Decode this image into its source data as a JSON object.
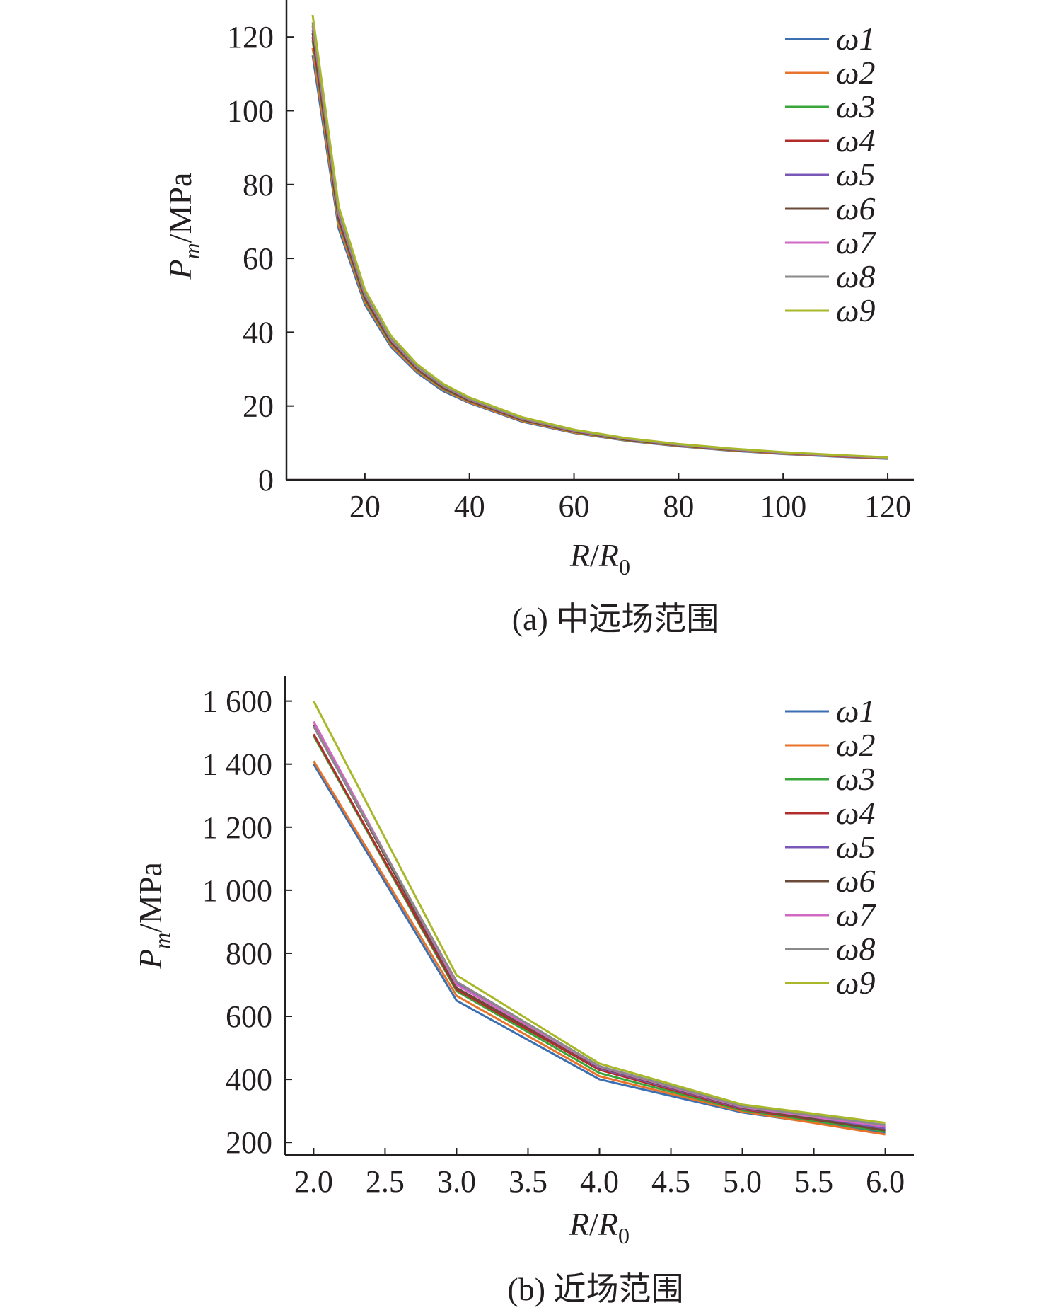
{
  "colors": {
    "axis": "#231f20",
    "series": [
      "#3c6fb0",
      "#e8732a",
      "#3aa53a",
      "#b22c2c",
      "#7a58b8",
      "#6b4a3a",
      "#d168c4",
      "#8a8a8a",
      "#a8b82a"
    ]
  },
  "chart_data": [
    {
      "type": "line",
      "caption": "(a) 中远场范围",
      "xlabel": "R/R0",
      "ylabel": "Pm/MPa",
      "xlim": [
        5,
        125
      ],
      "ylim": [
        0,
        130
      ],
      "xticks": [
        20,
        40,
        60,
        80,
        100,
        120
      ],
      "xtick_labels": [
        "20",
        "40",
        "60",
        "80",
        "100",
        "120"
      ],
      "yticks": [
        0,
        20,
        40,
        60,
        80,
        100,
        120
      ],
      "ytick_labels": [
        "0",
        "20",
        "40",
        "60",
        "80",
        "100",
        "120"
      ],
      "legend_position": "top-right",
      "x": [
        10,
        15,
        20,
        25,
        30,
        35,
        40,
        50,
        60,
        70,
        80,
        90,
        100,
        110,
        120
      ],
      "series": [
        {
          "name": "ω1",
          "values": [
            115,
            68,
            47.5,
            36,
            29,
            24,
            20.8,
            15.8,
            12.7,
            10.6,
            9.1,
            7.9,
            7.0,
            6.3,
            5.7
          ]
        },
        {
          "name": "ω2",
          "values": [
            117,
            69,
            48.2,
            36.5,
            29.4,
            24.4,
            21.0,
            16.0,
            12.8,
            10.7,
            9.2,
            8.0,
            7.1,
            6.4,
            5.8
          ]
        },
        {
          "name": "ω3",
          "values": [
            119,
            70,
            48.8,
            37,
            29.8,
            24.7,
            21.3,
            16.2,
            13.0,
            10.8,
            9.3,
            8.1,
            7.2,
            6.5,
            5.9
          ]
        },
        {
          "name": "ω4",
          "values": [
            120,
            70.5,
            49.2,
            37.3,
            30.0,
            24.9,
            21.4,
            16.3,
            13.1,
            10.9,
            9.35,
            8.15,
            7.25,
            6.5,
            5.9
          ]
        },
        {
          "name": "ω5",
          "values": [
            122,
            71.5,
            49.8,
            37.7,
            30.3,
            25.2,
            21.6,
            16.5,
            13.2,
            11.0,
            9.45,
            8.25,
            7.3,
            6.55,
            5.95
          ]
        },
        {
          "name": "ω6",
          "values": [
            121,
            71,
            49.5,
            37.5,
            30.2,
            25.0,
            21.5,
            16.4,
            13.15,
            10.95,
            9.4,
            8.2,
            7.3,
            6.55,
            5.95
          ]
        },
        {
          "name": "ω7",
          "values": [
            123,
            72,
            50.2,
            38.0,
            30.5,
            25.4,
            21.8,
            16.6,
            13.3,
            11.1,
            9.5,
            8.3,
            7.35,
            6.6,
            6.0
          ]
        },
        {
          "name": "ω8",
          "values": [
            124,
            72.5,
            50.5,
            38.2,
            30.7,
            25.5,
            21.9,
            16.7,
            13.4,
            11.15,
            9.55,
            8.35,
            7.4,
            6.65,
            6.05
          ]
        },
        {
          "name": "ω9",
          "values": [
            126,
            74,
            51.5,
            39.0,
            31.3,
            26.0,
            22.3,
            17.0,
            13.6,
            11.3,
            9.7,
            8.5,
            7.5,
            6.75,
            6.1
          ]
        }
      ]
    },
    {
      "type": "line",
      "caption": "(b) 近场范围",
      "xlabel": "R/R0",
      "ylabel": "Pm/MPa",
      "xlim": [
        1.8,
        6.2
      ],
      "ylim": [
        160,
        1680
      ],
      "xticks": [
        2.0,
        2.5,
        3.0,
        3.5,
        4.0,
        4.5,
        5.0,
        5.5,
        6.0
      ],
      "xtick_labels": [
        "2.0",
        "2.5",
        "3.0",
        "3.5",
        "4.0",
        "4.5",
        "5.0",
        "5.5",
        "6.0"
      ],
      "yticks": [
        200,
        400,
        600,
        800,
        1000,
        1200,
        1400,
        1600
      ],
      "ytick_labels": [
        "200",
        "400",
        "600",
        "800",
        "1 000",
        "1 200",
        "1 400",
        "1 600"
      ],
      "legend_position": "top-right",
      "x": [
        2.0,
        3.0,
        4.0,
        5.0,
        6.0
      ],
      "series": [
        {
          "name": "ω1",
          "values": [
            1400,
            650,
            400,
            295,
            230
          ]
        },
        {
          "name": "ω2",
          "values": [
            1410,
            665,
            410,
            298,
            225
          ]
        },
        {
          "name": "ω3",
          "values": [
            1490,
            680,
            420,
            302,
            235
          ]
        },
        {
          "name": "ω4",
          "values": [
            1495,
            685,
            430,
            305,
            240
          ]
        },
        {
          "name": "ω5",
          "values": [
            1520,
            705,
            435,
            308,
            245
          ]
        },
        {
          "name": "ω6",
          "values": [
            1525,
            690,
            438,
            310,
            238
          ]
        },
        {
          "name": "ω7",
          "values": [
            1535,
            700,
            440,
            312,
            250
          ]
        },
        {
          "name": "ω8",
          "values": [
            1520,
            710,
            442,
            315,
            255
          ]
        },
        {
          "name": "ω9",
          "values": [
            1600,
            730,
            450,
            320,
            262
          ]
        }
      ]
    }
  ]
}
